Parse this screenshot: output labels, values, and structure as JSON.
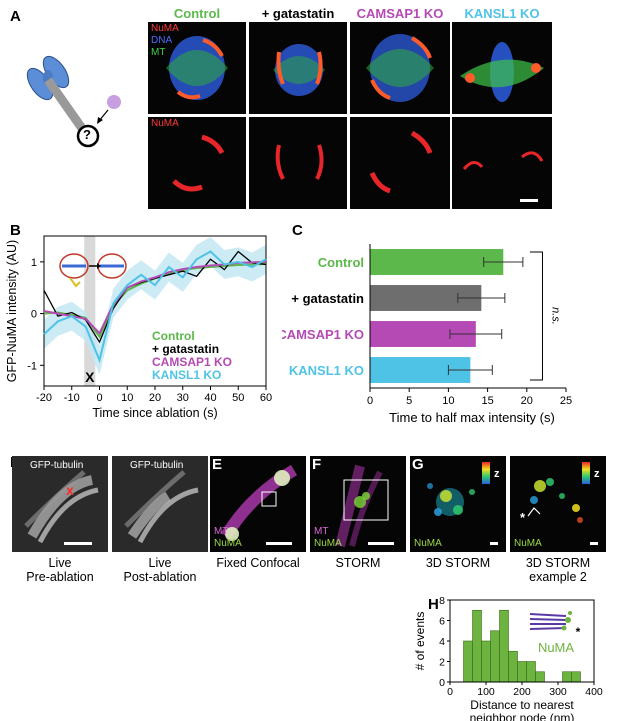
{
  "panel_labels": {
    "A": "A",
    "B": "B",
    "C": "C",
    "D": "D",
    "E": "E",
    "F": "F",
    "G": "G",
    "H": "H"
  },
  "panelA": {
    "conditions": [
      "Control",
      "+ gatastatin",
      "CAMSAP1 KO",
      "KANSL1 KO"
    ],
    "condition_colors": [
      "#5cb84a",
      "#000000",
      "#b54ab5",
      "#4fc3e6"
    ],
    "channel_labels": {
      "numa": "NuMA",
      "dna": "DNA",
      "mt": "MT",
      "numa_row2": "NuMA"
    },
    "schematic_question": "?"
  },
  "panelD": {
    "tubulin_label": "GFP-tubulin",
    "x_mark": "x",
    "caption_pre": "Live\nPre-ablation",
    "caption_post": "Live\nPost-ablation"
  },
  "panelE": {
    "mt": "MT",
    "numa": "NuMA",
    "caption": "Fixed Confocal"
  },
  "panelF": {
    "mt": "MT",
    "numa": "NuMA",
    "caption": "STORM"
  },
  "panelG": {
    "numa": "NuMA",
    "z": "z",
    "caption": "3D STORM"
  },
  "panelG2": {
    "numa": "NuMA",
    "z": "z",
    "star": "*",
    "caption": "3D STORM\nexample 2"
  },
  "colors": {
    "control": "#5cb84a",
    "gatastatin": "#000000",
    "camsap": "#b54ab5",
    "kansl": "#4fc3e6",
    "gray_bar": "#6e6e6e",
    "numa_red": "#e8262a"
  },
  "chart_data": [
    {
      "id": "B",
      "type": "line",
      "xlabel": "Time since ablation (s)",
      "ylabel": "GFP-NuMA intensity (AU)",
      "xlim": [
        -20,
        60
      ],
      "ylim": [
        -1.4,
        1.5
      ],
      "xticks": [
        -20,
        -10,
        0,
        10,
        20,
        30,
        40,
        50,
        60
      ],
      "yticks": [
        -1,
        0,
        1
      ],
      "annotation": "X",
      "series": [
        {
          "name": "Control",
          "color": "#5cb84a",
          "x": [
            -20,
            -15,
            -10,
            -5,
            0,
            5,
            10,
            15,
            20,
            25,
            30,
            35,
            40,
            45,
            50,
            55,
            60
          ],
          "y": [
            0,
            0.02,
            -0.03,
            -0.08,
            -0.45,
            0.15,
            0.45,
            0.58,
            0.68,
            0.78,
            0.84,
            0.88,
            0.9,
            0.92,
            0.94,
            0.95,
            0.96
          ]
        },
        {
          "name": "+ gatastatin",
          "color": "#000000",
          "x": [
            -20,
            -15,
            -10,
            -5,
            0,
            5,
            10,
            15,
            20,
            25,
            30,
            35,
            40,
            45,
            50,
            55,
            60
          ],
          "y": [
            0.45,
            -0.05,
            0.02,
            -0.12,
            -0.55,
            0.1,
            0.5,
            0.6,
            0.68,
            0.75,
            0.82,
            0.72,
            1.05,
            0.85,
            1.2,
            0.98,
            0.95
          ]
        },
        {
          "name": "CAMSAP1 KO",
          "color": "#b54ab5",
          "x": [
            -20,
            -15,
            -10,
            -5,
            0,
            5,
            10,
            15,
            20,
            25,
            30,
            35,
            40,
            45,
            50,
            55,
            60
          ],
          "y": [
            0.05,
            0,
            -0.05,
            -0.1,
            -0.38,
            0.18,
            0.5,
            0.62,
            0.7,
            0.8,
            0.86,
            0.9,
            0.93,
            0.95,
            0.98,
            0.99,
            1.0
          ]
        },
        {
          "name": "KANSL1 KO",
          "color": "#4fc3e6",
          "x": [
            -20,
            -15,
            -10,
            -5,
            0,
            5,
            10,
            15,
            20,
            25,
            30,
            35,
            40,
            45,
            50,
            55,
            60
          ],
          "y": [
            -0.4,
            -0.15,
            -0.05,
            -0.25,
            -0.9,
            0.2,
            0.55,
            0.75,
            0.55,
            0.9,
            0.7,
            1.05,
            1.2,
            0.95,
            1.0,
            0.9,
            1.05
          ]
        }
      ]
    },
    {
      "id": "C",
      "type": "bar",
      "orientation": "horizontal",
      "categories": [
        "Control",
        "+ gatastatin",
        "CAMSAP1 KO",
        "KANSL1 KO"
      ],
      "values": [
        17,
        14.2,
        13.5,
        12.8
      ],
      "errors": [
        2.5,
        3,
        3.3,
        2.8
      ],
      "colors": [
        "#5cb84a",
        "#6e6e6e",
        "#b54ab5",
        "#4fc3e6"
      ],
      "label_colors": [
        "#5cb84a",
        "#000000",
        "#b54ab5",
        "#4fc3e6"
      ],
      "xlabel": "Time to half max intensity (s)",
      "xlim": [
        0,
        25
      ],
      "xticks": [
        0,
        5,
        10,
        15,
        20,
        25
      ],
      "annotation": "n.s."
    },
    {
      "id": "H",
      "type": "bar",
      "x": [
        50,
        75,
        100,
        125,
        150,
        175,
        200,
        225,
        250,
        275,
        300,
        325,
        350
      ],
      "values": [
        4,
        7,
        4,
        5,
        7,
        3,
        2,
        2,
        1,
        0,
        0,
        1,
        1
      ],
      "bin_width": 25,
      "color": "#6db33f",
      "xlabel": "Distance to nearest\nneighbor node (nm)",
      "ylabel": "# of events",
      "xlim": [
        0,
        400
      ],
      "ylim": [
        0,
        8
      ],
      "xticks": [
        0,
        100,
        200,
        300,
        400
      ],
      "yticks": [
        0,
        2,
        4,
        6,
        8
      ],
      "annotation": "NuMA",
      "annotation_star": "*"
    }
  ]
}
